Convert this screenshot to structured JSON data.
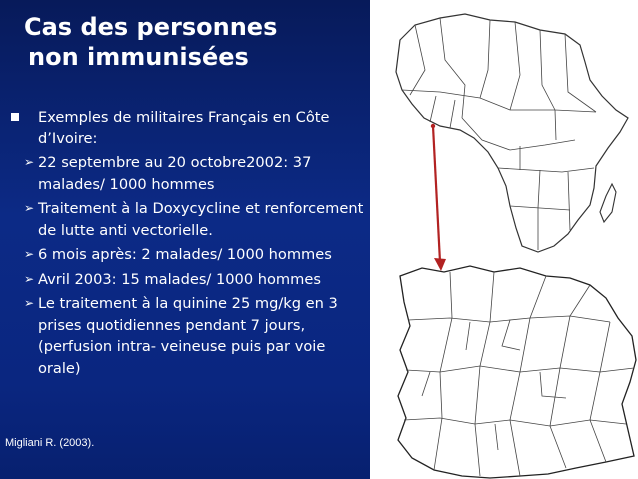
{
  "slide": {
    "title_line1": "Cas des personnes",
    "title_line2": "non immunisées",
    "bullet_main": "Exemples de militaires Français  en Côte d’Ivoire:",
    "sub_bullets": [
      "22 septembre au 20 octobre2002: 37 malades/ 1000 hommes",
      "Traitement à la Doxycycline et renforcement de lutte anti vectorielle.",
      "6 mois après: 2 malades/ 1000 hommes",
      "Avril 2003: 15 malades/ 1000 hommes",
      "Le traitement à la quinine 25 mg/kg en 3 prises quotidiennes pendant 7 jours, (perfusion intra- veineuse puis par voie orale)"
    ],
    "citation": "Migliani R. (2003)."
  },
  "colors": {
    "background_gradient_top": "#071a5a",
    "background_gradient_bottom": "#07206f",
    "text": "#ffffff",
    "arrow": "#b22222"
  },
  "icons": {
    "main_bullet": "square-bullet-icon",
    "sub_bullet": "arrowhead-bullet-icon"
  }
}
